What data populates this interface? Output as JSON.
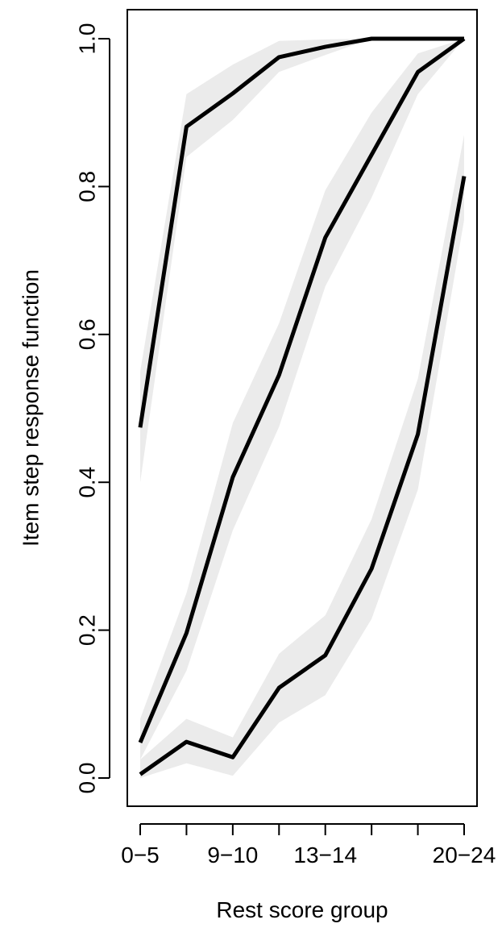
{
  "chart_data": {
    "type": "line",
    "title": "",
    "xlabel": "Rest score group",
    "ylabel": "Item step response function",
    "x_tick_positions": [
      1,
      2,
      3,
      4,
      5,
      6,
      7,
      8
    ],
    "x_tick_labels": [
      "0−5",
      "",
      "9−10",
      "",
      "13−14",
      "",
      "",
      "20−24"
    ],
    "y_ticks": [
      0.0,
      0.2,
      0.4,
      0.6,
      0.8,
      1.0
    ],
    "y_tick_labels": [
      "0.0",
      "0.2",
      "0.4",
      "0.6",
      "0.8",
      "1.0"
    ],
    "ylim": [
      0,
      1
    ],
    "xlim": [
      1,
      8
    ],
    "grid": false,
    "line_color": "#000000",
    "band_color": "#ebebeb",
    "series": [
      {
        "x": [
          1,
          2,
          3,
          4,
          5,
          6,
          7,
          8
        ],
        "values": [
          0.474,
          0.881,
          0.926,
          0.975,
          0.989,
          1.0,
          1.0,
          1.0
        ],
        "lower": [
          0.4,
          0.84,
          0.89,
          0.955,
          0.978,
          1.0,
          1.0,
          1.0
        ],
        "upper": [
          0.55,
          0.925,
          0.965,
          0.997,
          0.999,
          1.0,
          1.0,
          1.0
        ]
      },
      {
        "x": [
          1,
          2,
          3,
          4,
          5,
          6,
          7,
          8
        ],
        "values": [
          0.048,
          0.196,
          0.407,
          0.545,
          0.731,
          0.843,
          0.955,
          1.0
        ],
        "lower": [
          0.025,
          0.145,
          0.335,
          0.475,
          0.665,
          0.785,
          0.925,
          1.0
        ],
        "upper": [
          0.08,
          0.25,
          0.48,
          0.615,
          0.795,
          0.9,
          0.98,
          1.0
        ]
      },
      {
        "x": [
          1,
          2,
          3,
          4,
          5,
          6,
          7,
          8
        ],
        "values": [
          0.005,
          0.049,
          0.028,
          0.122,
          0.166,
          0.283,
          0.465,
          0.814
        ],
        "lower": [
          0.0,
          0.02,
          0.003,
          0.075,
          0.112,
          0.215,
          0.39,
          0.755
        ],
        "upper": [
          0.025,
          0.08,
          0.055,
          0.168,
          0.22,
          0.35,
          0.54,
          0.87
        ]
      }
    ]
  }
}
